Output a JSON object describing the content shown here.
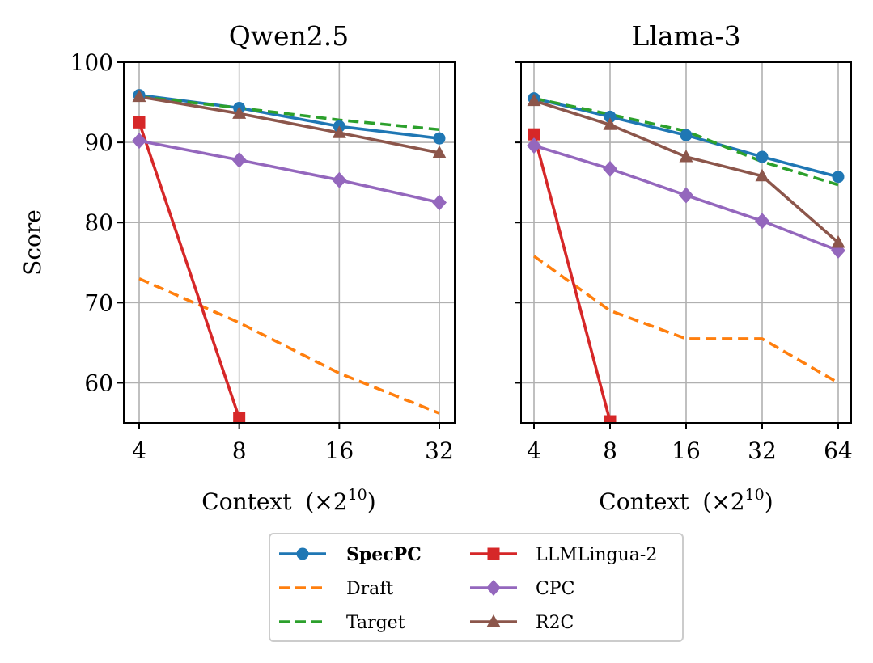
{
  "chart_data": [
    {
      "type": "line",
      "title": "Qwen2.5",
      "xlabel_prefix": "Context",
      "xlabel_math": "(×2",
      "xlabel_exp": "10",
      "xlabel_close": ")",
      "ylabel": "Score",
      "categories": [
        "4",
        "8",
        "16",
        "32"
      ],
      "ylim": [
        55,
        100
      ],
      "yticks": [
        "100",
        "90",
        "80",
        "70",
        "60"
      ],
      "series": [
        {
          "name": "SpecPC",
          "values": [
            95.9,
            94.3,
            92.0,
            90.5
          ]
        },
        {
          "name": "Draft",
          "values": [
            73.0,
            67.5,
            61.2,
            56.2
          ]
        },
        {
          "name": "Target",
          "values": [
            95.7,
            94.3,
            92.8,
            91.6
          ]
        },
        {
          "name": "LLMLingua-2",
          "values": [
            92.5,
            55.6,
            null,
            null
          ]
        },
        {
          "name": "CPC",
          "values": [
            90.2,
            87.8,
            85.3,
            82.5
          ]
        },
        {
          "name": "R2C",
          "values": [
            95.7,
            93.6,
            91.2,
            88.7
          ]
        }
      ]
    },
    {
      "type": "line",
      "title": "Llama-3",
      "xlabel_prefix": "Context",
      "xlabel_math": "(×2",
      "xlabel_exp": "10",
      "xlabel_close": ")",
      "ylabel": "",
      "categories": [
        "4",
        "8",
        "16",
        "32",
        "64"
      ],
      "ylim": [
        55,
        100
      ],
      "yticks": [],
      "series": [
        {
          "name": "SpecPC",
          "values": [
            95.5,
            93.2,
            90.9,
            88.2,
            85.7
          ]
        },
        {
          "name": "Draft",
          "values": [
            75.8,
            69.0,
            65.5,
            65.5,
            60.0
          ]
        },
        {
          "name": "Target",
          "values": [
            95.5,
            93.5,
            91.4,
            87.6,
            84.7
          ]
        },
        {
          "name": "LLMLingua-2",
          "values": [
            91.0,
            55.2,
            null,
            null,
            null
          ]
        },
        {
          "name": "CPC",
          "values": [
            89.6,
            86.7,
            83.4,
            80.2,
            76.5
          ]
        },
        {
          "name": "R2C",
          "values": [
            95.2,
            92.2,
            88.2,
            85.8,
            77.5
          ]
        }
      ]
    }
  ],
  "legend": {
    "placement": "bottom-center",
    "entries": [
      {
        "label": "SpecPC",
        "series": "SpecPC",
        "bold": true
      },
      {
        "label": "Draft",
        "series": "Draft",
        "bold": false
      },
      {
        "label": "Target",
        "series": "Target",
        "bold": false
      },
      {
        "label": "LLMLingua-2",
        "series": "LLMLingua-2",
        "bold": false
      },
      {
        "label": "CPC",
        "series": "CPC",
        "bold": false
      },
      {
        "label": "R2C",
        "series": "R2C",
        "bold": false
      }
    ]
  },
  "styles": {
    "SpecPC": {
      "color": "#1f77b4",
      "dash": "solid",
      "marker": "circle"
    },
    "Draft": {
      "color": "#ff7f0e",
      "dash": "dashed",
      "marker": "none"
    },
    "Target": {
      "color": "#2ca02c",
      "dash": "dashed",
      "marker": "none"
    },
    "LLMLingua-2": {
      "color": "#d62728",
      "dash": "solid",
      "marker": "square"
    },
    "CPC": {
      "color": "#9467bd",
      "dash": "solid",
      "marker": "diamond"
    },
    "R2C": {
      "color": "#8c564b",
      "dash": "solid",
      "marker": "triangle"
    },
    "grid": "#b0b0b0"
  }
}
